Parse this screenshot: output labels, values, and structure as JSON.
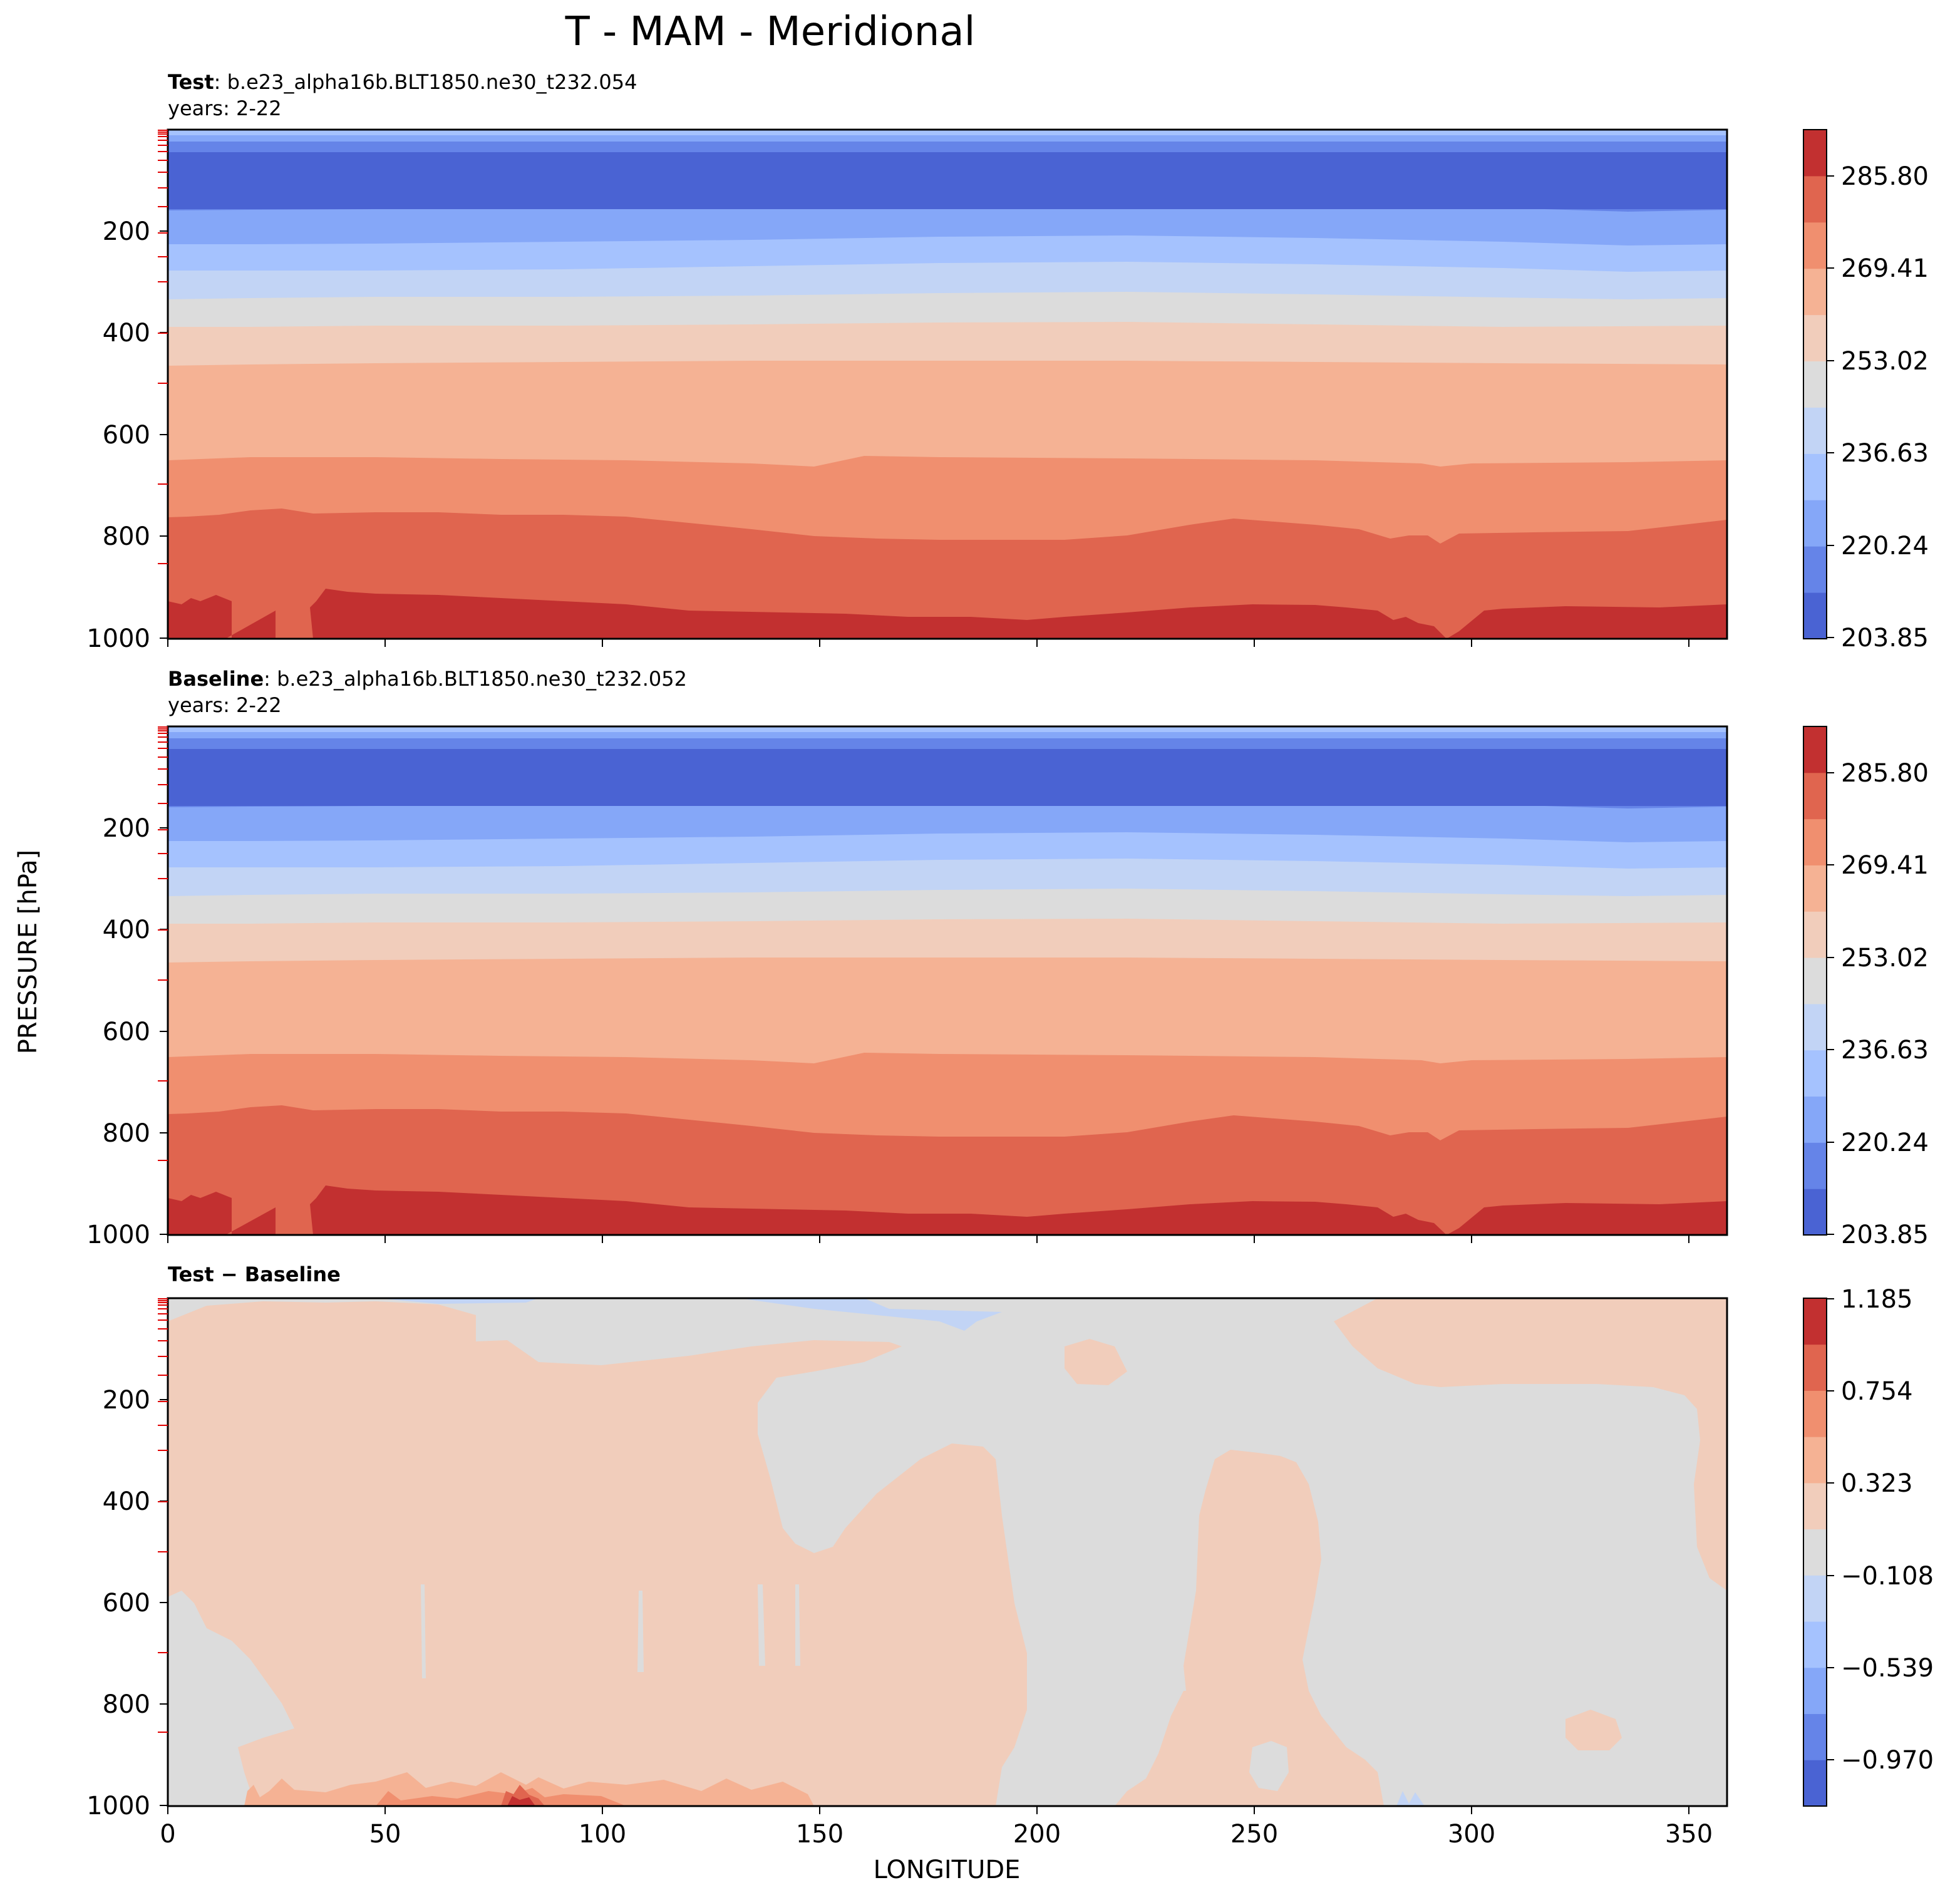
{
  "figure": {
    "suptitle": "T - MAM - Meridional",
    "ylabel": "PRESSURE [hPa]",
    "xlabel": "LONGITUDE"
  },
  "chart_data": [
    {
      "type": "heatmap",
      "name": "test",
      "title_bold": "Test",
      "title_rest": ": b.e23_alpha16b.BLT1850.ne30_t232.054",
      "subtitle": "years: 2-22",
      "x_range": [
        0,
        358.75
      ],
      "y_range": [
        1000,
        3.6
      ],
      "y_ticks": [
        200,
        400,
        600,
        800,
        1000
      ],
      "x_ticks": [
        0,
        50,
        100,
        150,
        200,
        250,
        300,
        350
      ],
      "x_ticklabels_visible": false,
      "colormap": "coolwarm",
      "colorbar_ticks": [
        "203.85",
        "220.24",
        "236.63",
        "253.02",
        "269.41",
        "285.80"
      ],
      "levels": [
        203.85,
        212.05,
        220.24,
        228.44,
        236.63,
        244.83,
        253.02,
        261.22,
        269.41,
        277.61,
        285.8,
        294.0
      ],
      "color_bands": [
        "#4a63d3",
        "#6584e8",
        "#85a7f8",
        "#a5c2fe",
        "#c2d4f5",
        "#dcdcdc",
        "#f1cdbb",
        "#f5b294",
        "#f08f6f",
        "#e0654f",
        "#c23030"
      ]
    },
    {
      "type": "heatmap",
      "name": "baseline",
      "title_bold": "Baseline",
      "title_rest": ": b.e23_alpha16b.BLT1850.ne30_t232.052",
      "subtitle": "years: 2-22",
      "x_range": [
        0,
        358.75
      ],
      "y_range": [
        1000,
        3.6
      ],
      "y_ticks": [
        200,
        400,
        600,
        800,
        1000
      ],
      "x_ticks": [
        0,
        50,
        100,
        150,
        200,
        250,
        300,
        350
      ],
      "x_ticklabels_visible": false,
      "colormap": "coolwarm",
      "colorbar_ticks": [
        "203.85",
        "220.24",
        "236.63",
        "253.02",
        "269.41",
        "285.80"
      ],
      "levels": [
        203.85,
        212.05,
        220.24,
        228.44,
        236.63,
        244.83,
        253.02,
        261.22,
        269.41,
        277.61,
        285.8,
        294.0
      ],
      "color_bands": [
        "#4a63d3",
        "#6584e8",
        "#85a7f8",
        "#a5c2fe",
        "#c2d4f5",
        "#dcdcdc",
        "#f1cdbb",
        "#f5b294",
        "#f08f6f",
        "#e0654f",
        "#c23030"
      ]
    },
    {
      "type": "heatmap",
      "name": "difference",
      "title_bold": "Test − Baseline",
      "title_rest": "",
      "subtitle": "",
      "x_range": [
        0,
        358.75
      ],
      "y_range": [
        1000,
        3.6
      ],
      "y_ticks": [
        200,
        400,
        600,
        800,
        1000
      ],
      "x_ticks": [
        0,
        50,
        100,
        150,
        200,
        250,
        300,
        350
      ],
      "x_ticklabels_visible": true,
      "x_ticklabels": [
        "0",
        "50",
        "100",
        "150",
        "200",
        "250",
        "300",
        "350"
      ],
      "colormap": "coolwarm",
      "colorbar_ticks": [
        "1.185",
        "0.754",
        "0.323",
        "−0.108",
        "−0.539",
        "−0.970"
      ],
      "levels": [
        -1.185,
        -0.97,
        -0.754,
        -0.539,
        -0.323,
        -0.108,
        0.108,
        0.323,
        0.539,
        0.754,
        0.97,
        1.185
      ],
      "color_bands": [
        "#4a63d3",
        "#6584e8",
        "#85a7f8",
        "#a5c2fe",
        "#c2d4f5",
        "#dcdcdc",
        "#f1cdbb",
        "#f5b294",
        "#f08f6f",
        "#e0654f",
        "#c23030"
      ],
      "background_range": [
        -0.108,
        0.108
      ],
      "dominant_anomaly_range": [
        0.108,
        0.323
      ]
    }
  ]
}
